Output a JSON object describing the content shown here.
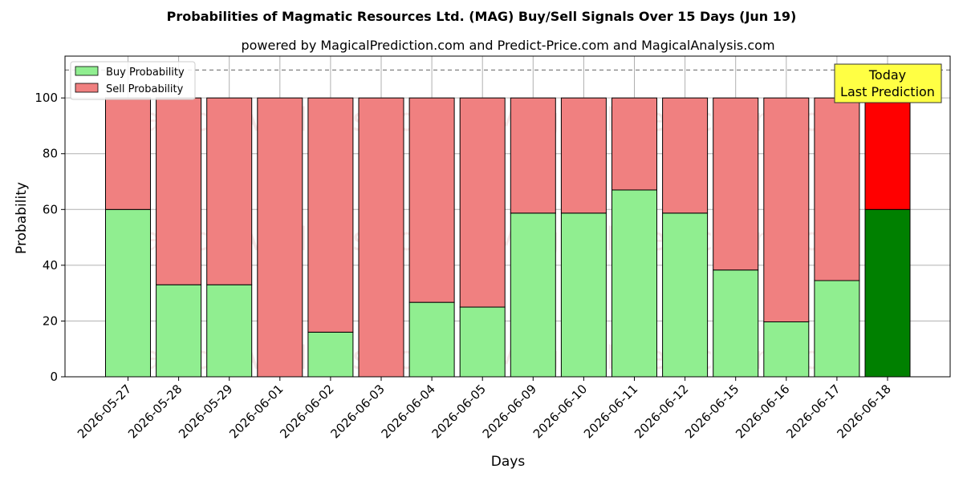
{
  "chart_data": {
    "type": "bar",
    "stacked": true,
    "title": "Probabilities of Magmatic Resources Ltd. (MAG) Buy/Sell Signals Over 15 Days (Jun 19)",
    "subtitle": "powered by MagicalPrediction.com and Predict-Price.com and MagicalAnalysis.com",
    "xlabel": "Days",
    "ylabel": "Probability",
    "ylim": [
      0,
      115
    ],
    "yticks": [
      "0",
      "20",
      "40",
      "60",
      "80",
      "100"
    ],
    "grid": true,
    "reference_line": 110,
    "categories": [
      "2026-05-27",
      "2026-05-28",
      "2026-05-29",
      "2026-06-01",
      "2026-06-02",
      "2026-06-03",
      "2026-06-04",
      "2026-06-05",
      "2026-06-09",
      "2026-06-10",
      "2026-06-11",
      "2026-06-12",
      "2026-06-15",
      "2026-06-16",
      "2026-06-17",
      "2026-06-18"
    ],
    "series": [
      {
        "name": "Buy Probability",
        "color": "#90ee90",
        "highlight_color": "#008000",
        "values": [
          60,
          33,
          33,
          0,
          16,
          0,
          26.7,
          25,
          58.7,
          58.7,
          67,
          58.7,
          38.3,
          19.7,
          34.5,
          60
        ]
      },
      {
        "name": "Sell Probability",
        "color": "#f08080",
        "highlight_color": "#ff0000",
        "values": [
          40,
          67,
          67,
          100,
          84,
          100,
          73.3,
          75,
          41.3,
          41.3,
          33,
          41.3,
          61.7,
          80.3,
          65.5,
          40
        ]
      }
    ],
    "legend_position": "top-left",
    "annotation": {
      "lines": [
        "Today",
        "Last Prediction"
      ],
      "bg_color": "#ffff44"
    },
    "watermarks": [
      "MagicalAnalysis.com",
      "MagicalPrediction.com"
    ]
  }
}
